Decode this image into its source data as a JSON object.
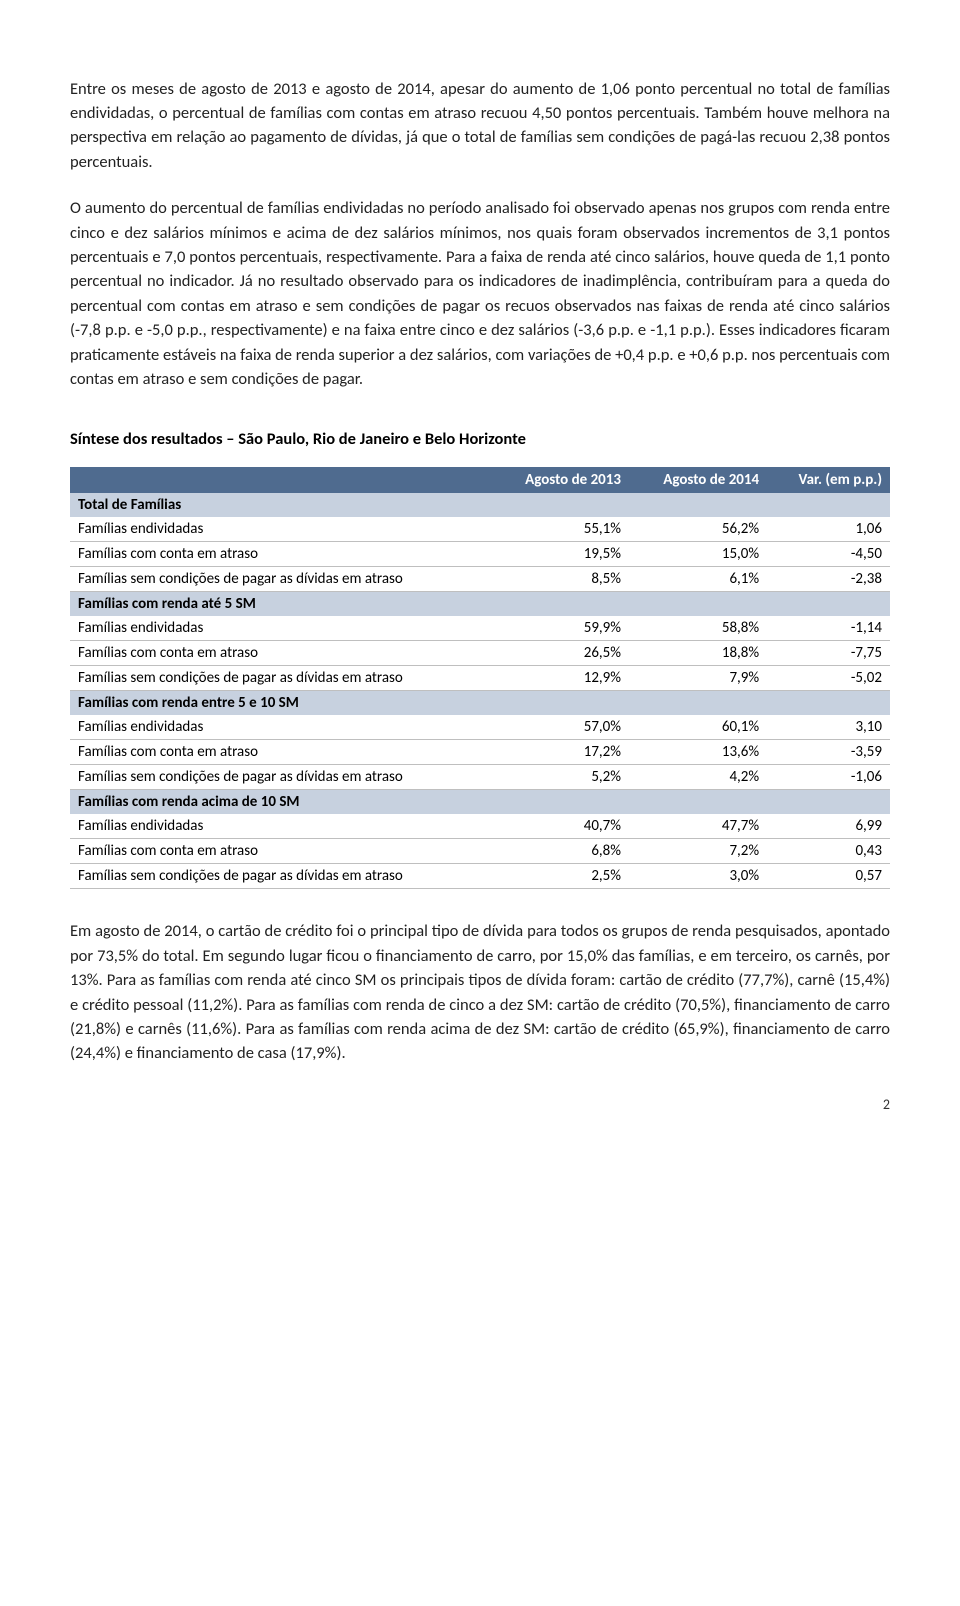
{
  "paragraphs": {
    "p1": "Entre os meses de agosto de 2013 e agosto de 2014, apesar do aumento de 1,06 ponto percentual no total de famílias endividadas, o percentual de famílias com contas em atraso recuou 4,50 pontos percentuais. Também houve melhora na perspectiva em relação ao pagamento de dívidas, já que o total de famílias sem condições de pagá-las recuou 2,38 pontos percentuais.",
    "p2": "O aumento do percentual de famílias endividadas no período analisado foi observado apenas nos grupos com renda entre cinco e dez salários mínimos e acima de dez salários mínimos, nos quais foram observados incrementos de 3,1 pontos percentuais e 7,0 pontos percentuais, respectivamente. Para a faixa de renda até cinco salários, houve queda de 1,1 ponto percentual no indicador. Já no resultado observado para os indicadores de inadimplência, contribuíram para a queda do percentual com contas em atraso e sem condições de pagar os recuos observados nas faixas de renda até cinco salários (-7,8 p.p. e -5,0 p.p., respectivamente) e na faixa entre cinco e dez salários (-3,6 p.p. e -1,1 p.p.). Esses indicadores ficaram praticamente estáveis na faixa de renda superior a dez salários, com variações de +0,4 p.p. e +0,6 p.p. nos percentuais com contas em atraso e sem condições de pagar.",
    "p3": "Em agosto de 2014, o cartão de crédito foi o principal tipo de dívida para todos os grupos de renda pesquisados, apontado por 73,5% do total. Em segundo lugar ficou o financiamento de carro, por 15,0% das famílias, e em terceiro, os carnês, por 13%. Para as famílias com renda até cinco SM os principais tipos de dívida foram: cartão de crédito (77,7%), carnê (15,4%) e crédito pessoal (11,2%). Para as famílias com renda de cinco a dez SM: cartão de crédito (70,5%), financiamento de carro (21,8%) e carnês (11,6%). Para as famílias com renda acima de dez SM: cartão de crédito (65,9%), financiamento de carro (24,4%) e financiamento de casa (17,9%)."
  },
  "section_title": "Síntese dos resultados – São Paulo, Rio de Janeiro e Belo Horizonte",
  "table": {
    "header_bg": "#4f6b8f",
    "header_color": "#ffffff",
    "group_bg": "#c7d1df",
    "border_color": "#bfbfbf",
    "columns": [
      "",
      "Agosto de 2013",
      "Agosto de 2014",
      "Var. (em p.p.)"
    ],
    "groups": [
      {
        "title": "Total de Famílias",
        "rows": [
          {
            "label": "Famílias endividadas",
            "a": "55,1%",
            "b": "56,2%",
            "v": "1,06"
          },
          {
            "label": "Famílias com conta em atraso",
            "a": "19,5%",
            "b": "15,0%",
            "v": "-4,50"
          },
          {
            "label": "Famílias sem condições de pagar as dívidas em atraso",
            "a": "8,5%",
            "b": "6,1%",
            "v": "-2,38"
          }
        ]
      },
      {
        "title": "Famílias com renda até 5 SM",
        "rows": [
          {
            "label": "Famílias endividadas",
            "a": "59,9%",
            "b": "58,8%",
            "v": "-1,14"
          },
          {
            "label": "Famílias com conta em atraso",
            "a": "26,5%",
            "b": "18,8%",
            "v": "-7,75"
          },
          {
            "label": "Famílias sem condições de pagar as dívidas em atraso",
            "a": "12,9%",
            "b": "7,9%",
            "v": "-5,02"
          }
        ]
      },
      {
        "title": "Famílias com renda entre 5 e 10 SM",
        "rows": [
          {
            "label": "Famílias endividadas",
            "a": "57,0%",
            "b": "60,1%",
            "v": "3,10"
          },
          {
            "label": "Famílias com conta em atraso",
            "a": "17,2%",
            "b": "13,6%",
            "v": "-3,59"
          },
          {
            "label": "Famílias sem condições de pagar as dívidas em atraso",
            "a": "5,2%",
            "b": "4,2%",
            "v": "-1,06"
          }
        ]
      },
      {
        "title": "Famílias com renda acima de 10 SM",
        "rows": [
          {
            "label": "Famílias endividadas",
            "a": "40,7%",
            "b": "47,7%",
            "v": "6,99"
          },
          {
            "label": "Famílias com conta em atraso",
            "a": "6,8%",
            "b": "7,2%",
            "v": "0,43"
          },
          {
            "label": "Famílias sem condições de pagar as dívidas em atraso",
            "a": "2,5%",
            "b": "3,0%",
            "v": "0,57"
          }
        ]
      }
    ]
  },
  "page_number": "2"
}
